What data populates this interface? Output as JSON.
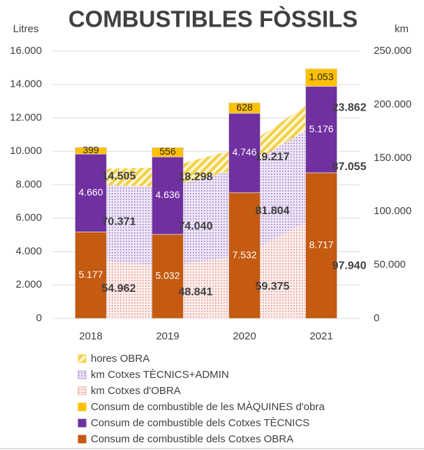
{
  "chart_data": {
    "type": "bar",
    "title": "COMBUSTIBLES FÒSSILS",
    "y_label": "Litres",
    "y2_label": "km",
    "categories": [
      "2018",
      "2019",
      "2020",
      "2021"
    ],
    "ylim": [
      0,
      16000
    ],
    "yticks": [
      0,
      {
        "value": 2000,
        "label": "2.000"
      },
      {
        "value": 4000,
        "label": "4.000"
      },
      {
        "value": 6000,
        "label": "6.000"
      },
      {
        "value": 8000,
        "label": "8.000"
      },
      {
        "value": 10000,
        "label": "10.000"
      },
      {
        "value": 12000,
        "label": "12.000"
      },
      {
        "value": 14000,
        "label": "14.000"
      },
      {
        "value": 16000,
        "label": "16.000"
      }
    ],
    "y2lim": [
      0,
      250000
    ],
    "y2ticks": [
      0,
      {
        "value": 50000,
        "label": "50.000"
      },
      {
        "value": 100000,
        "label": "100.000"
      },
      {
        "value": 150000,
        "label": "150.000"
      },
      {
        "value": 200000,
        "label": "200.000"
      },
      {
        "value": 250000,
        "label": "250.000"
      }
    ],
    "grid": true,
    "series": [
      {
        "name": "hores OBRA",
        "type": "area",
        "axis": "y2",
        "color": "#f2cf4a",
        "values": [
          14505,
          18298,
          19217,
          23862
        ],
        "value_labels": [
          "14.505",
          "18.298",
          "19.217",
          "23.862"
        ]
      },
      {
        "name": "km Cotxes TÈCNICS+ADMIN",
        "type": "area",
        "axis": "y2",
        "color": "#b89ad6",
        "values": [
          70371,
          74040,
          81804,
          87055
        ],
        "value_labels": [
          "70.371",
          "74.040",
          "81.804",
          "87.055"
        ]
      },
      {
        "name": "km Cotxes d'OBRA",
        "type": "area",
        "axis": "y2",
        "color": "#e9a9a0",
        "values": [
          54962,
          48841,
          59375,
          97940
        ],
        "value_labels": [
          "54.962",
          "48.841",
          "59.375",
          "97.940"
        ]
      },
      {
        "name": "Consum de combustible de les MÀQUINES d'obra",
        "type": "bar",
        "axis": "y",
        "color": "#ffc000",
        "values": [
          399,
          556,
          628,
          1053
        ],
        "value_labels": [
          "399",
          "556",
          "628",
          "1.053"
        ]
      },
      {
        "name": "Consum de combustible dels Cotxes TÈCNICS",
        "type": "bar",
        "axis": "y",
        "color": "#7030a0",
        "values": [
          4660,
          4636,
          4746,
          5176
        ],
        "value_labels": [
          "4.660",
          "4.636",
          "4.746",
          "5.176"
        ]
      },
      {
        "name": "Consum de combustible dels Cotxes OBRA",
        "type": "bar",
        "axis": "y",
        "color": "#c55a11",
        "values": [
          5177,
          5032,
          7532,
          8717
        ],
        "value_labels": [
          "5.177",
          "5.032",
          "7.532",
          "8.717"
        ]
      }
    ]
  }
}
